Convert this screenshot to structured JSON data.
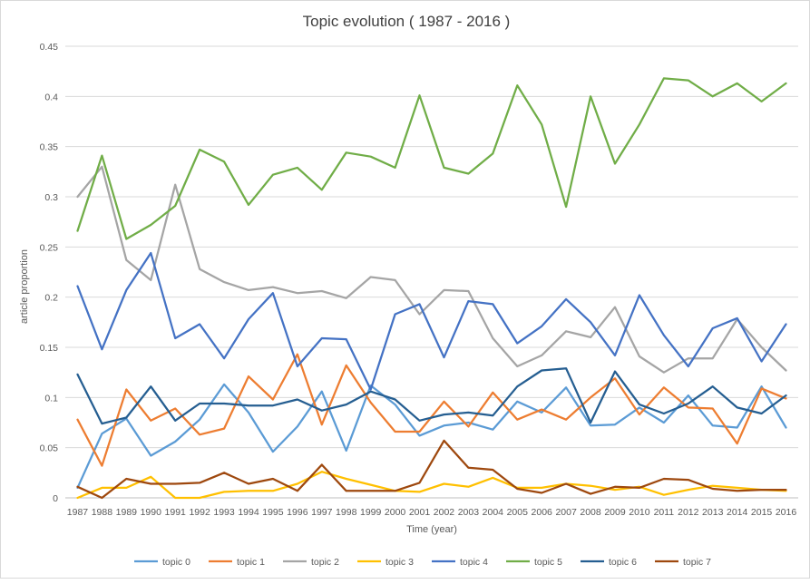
{
  "chart_data": {
    "type": "line",
    "title": "Topic evolution ( 1987 - 2016 )",
    "xlabel": "Time (year)",
    "ylabel": "article proportion",
    "ylim": [
      0,
      0.45
    ],
    "yticks": [
      "0",
      "0.05",
      "0.1",
      "0.15",
      "0.2",
      "0.25",
      "0.3",
      "0.35",
      "0.4",
      "0.45"
    ],
    "grid": true,
    "legend_position": "bottom",
    "x": [
      "1987",
      "1988",
      "1989",
      "1990",
      "1991",
      "1992",
      "1993",
      "1994",
      "1995",
      "1996",
      "1997",
      "1998",
      "1999",
      "2000",
      "2001",
      "2002",
      "2003",
      "2004",
      "2005",
      "2006",
      "2007",
      "2008",
      "2009",
      "2010",
      "2011",
      "2012",
      "2013",
      "2014",
      "2015",
      "2016"
    ],
    "series": [
      {
        "name": "topic 0",
        "color": "#5b9bd5",
        "values": [
          0.01,
          0.064,
          0.079,
          0.042,
          0.056,
          0.078,
          0.113,
          0.085,
          0.046,
          0.071,
          0.106,
          0.047,
          0.112,
          0.093,
          0.062,
          0.072,
          0.075,
          0.068,
          0.096,
          0.085,
          0.11,
          0.072,
          0.073,
          0.09,
          0.075,
          0.102,
          0.072,
          0.07,
          0.111,
          0.07
        ]
      },
      {
        "name": "topic 1",
        "color": "#ed7d31",
        "values": [
          0.078,
          0.032,
          0.108,
          0.077,
          0.089,
          0.063,
          0.069,
          0.121,
          0.098,
          0.143,
          0.073,
          0.132,
          0.095,
          0.066,
          0.066,
          0.096,
          0.071,
          0.105,
          0.078,
          0.088,
          0.078,
          0.1,
          0.119,
          0.083,
          0.11,
          0.09,
          0.089,
          0.054,
          0.109,
          0.099
        ]
      },
      {
        "name": "topic 2",
        "color": "#a5a5a5",
        "values": [
          0.3,
          0.33,
          0.237,
          0.217,
          0.312,
          0.228,
          0.215,
          0.207,
          0.21,
          0.204,
          0.206,
          0.199,
          0.22,
          0.217,
          0.183,
          0.207,
          0.206,
          0.159,
          0.131,
          0.142,
          0.166,
          0.16,
          0.19,
          0.141,
          0.125,
          0.139,
          0.139,
          0.178,
          0.15,
          0.127
        ]
      },
      {
        "name": "topic 3",
        "color": "#ffc000",
        "values": [
          0.0,
          0.01,
          0.01,
          0.021,
          0.0,
          0.0,
          0.006,
          0.007,
          0.007,
          0.014,
          0.026,
          0.019,
          0.013,
          0.007,
          0.006,
          0.014,
          0.011,
          0.02,
          0.01,
          0.01,
          0.014,
          0.012,
          0.008,
          0.011,
          0.003,
          0.008,
          0.012,
          0.01,
          0.008,
          0.007
        ]
      },
      {
        "name": "topic 4",
        "color": "#4472c4",
        "values": [
          0.211,
          0.148,
          0.207,
          0.244,
          0.159,
          0.173,
          0.139,
          0.178,
          0.204,
          0.131,
          0.159,
          0.158,
          0.108,
          0.183,
          0.193,
          0.14,
          0.196,
          0.193,
          0.154,
          0.171,
          0.198,
          0.175,
          0.142,
          0.202,
          0.162,
          0.131,
          0.169,
          0.179,
          0.136,
          0.173
        ]
      },
      {
        "name": "topic 5",
        "color": "#70ad47",
        "values": [
          0.266,
          0.341,
          0.258,
          0.272,
          0.291,
          0.347,
          0.335,
          0.292,
          0.322,
          0.329,
          0.307,
          0.344,
          0.34,
          0.329,
          0.401,
          0.329,
          0.323,
          0.343,
          0.411,
          0.372,
          0.29,
          0.4,
          0.333,
          0.372,
          0.418,
          0.416,
          0.4,
          0.413,
          0.395,
          0.413
        ]
      },
      {
        "name": "topic 6",
        "color": "#255e91",
        "values": [
          0.123,
          0.074,
          0.08,
          0.111,
          0.077,
          0.094,
          0.094,
          0.092,
          0.092,
          0.098,
          0.087,
          0.093,
          0.106,
          0.098,
          0.077,
          0.083,
          0.085,
          0.082,
          0.111,
          0.127,
          0.129,
          0.075,
          0.126,
          0.093,
          0.084,
          0.094,
          0.111,
          0.09,
          0.084,
          0.102
        ]
      },
      {
        "name": "topic 7",
        "color": "#9e480e",
        "values": [
          0.011,
          0.0,
          0.019,
          0.014,
          0.014,
          0.015,
          0.025,
          0.014,
          0.019,
          0.007,
          0.033,
          0.007,
          0.007,
          0.007,
          0.015,
          0.057,
          0.03,
          0.028,
          0.009,
          0.005,
          0.014,
          0.004,
          0.011,
          0.01,
          0.019,
          0.018,
          0.009,
          0.007,
          0.008,
          0.008
        ]
      }
    ]
  }
}
